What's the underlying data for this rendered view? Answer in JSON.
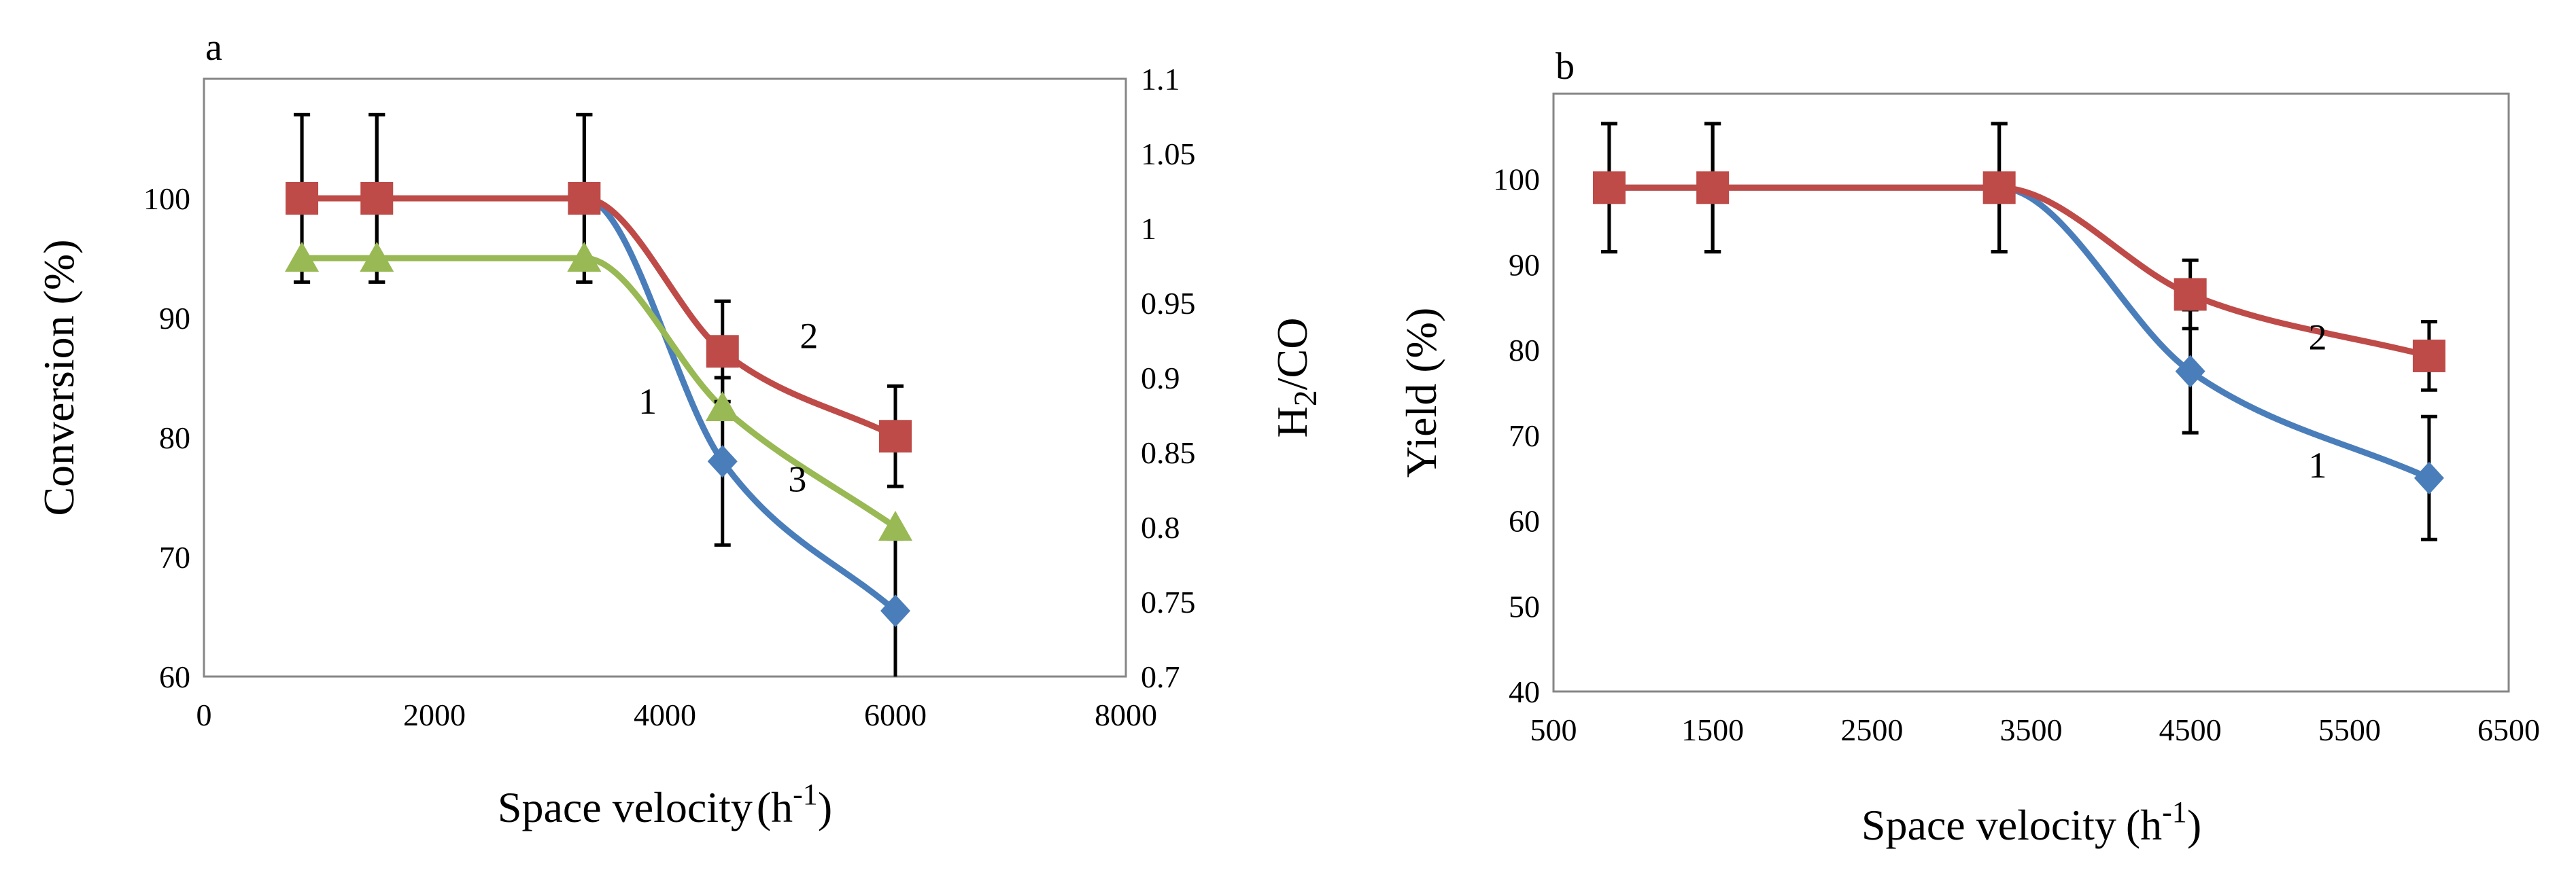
{
  "figure": {
    "colors": {
      "blue": "#4a7ebb",
      "red": "#be4b48",
      "green": "#98b954",
      "axis": "#868686",
      "errorbar": "#000000"
    }
  },
  "chart_data": [
    {
      "panel_label": "a",
      "type": "line",
      "xlabel": "Space velocity",
      "xlabel_unit_base": "(h",
      "xlabel_unit_sup": "-1",
      "xlabel_unit_end": ")",
      "ylabel": "Conversion (%)",
      "y2label_main": "H",
      "y2label_sub": "2",
      "y2label_end": "/CO",
      "xlim": [
        0,
        8000
      ],
      "ylim": [
        60,
        110
      ],
      "y2lim": [
        0.7,
        1.1
      ],
      "x_ticks": [
        "0",
        "2000",
        "4000",
        "6000",
        "8000"
      ],
      "y_ticks": [
        "60",
        "70",
        "80",
        "90",
        "100"
      ],
      "y2_ticks": [
        "0.7",
        "0.75",
        "0.8",
        "0.85",
        "0.9",
        "0.95",
        "1",
        "1.05",
        "1.1"
      ],
      "series": [
        {
          "name": "1",
          "color": "blue",
          "marker": "diamond",
          "axis": "left",
          "x": [
            850,
            1500,
            3300,
            4500,
            6000
          ],
          "values": [
            100,
            100,
            100,
            78,
            65.5
          ],
          "errors": [
            7,
            7,
            7,
            7,
            6
          ]
        },
        {
          "name": "2",
          "color": "red",
          "marker": "square",
          "axis": "left",
          "x": [
            850,
            1500,
            3300,
            4500,
            6000
          ],
          "values": [
            100,
            100,
            100,
            87.2,
            80.1
          ],
          "errors": [
            7,
            7,
            7,
            4.2,
            4.2
          ]
        },
        {
          "name": "3",
          "color": "green",
          "marker": "triangle",
          "axis": "right",
          "x": [
            850,
            1500,
            3300,
            4500,
            6000
          ],
          "values": [
            0.98,
            0.98,
            0.98,
            0.88,
            0.8
          ],
          "errors": [
            0,
            0,
            0,
            0,
            0
          ]
        }
      ],
      "annotations": [
        {
          "text": "1",
          "x": 3850,
          "y": 83
        },
        {
          "text": "2",
          "x": 5250,
          "y": 88.5
        },
        {
          "text": "3",
          "x": 5150,
          "y": 76.5
        }
      ]
    },
    {
      "panel_label": "b",
      "type": "line",
      "xlabel": "Space velocity",
      "xlabel_unit_base": "(h",
      "xlabel_unit_sup": "-1",
      "xlabel_unit_end": ")",
      "ylabel": "Yield  (%)",
      "xlim": [
        500,
        6500
      ],
      "ylim": [
        40,
        110
      ],
      "x_ticks": [
        "500",
        "1500",
        "2500",
        "3500",
        "4500",
        "5500",
        "6500"
      ],
      "y_ticks": [
        "40",
        "50",
        "60",
        "70",
        "80",
        "90",
        "100"
      ],
      "series": [
        {
          "name": "1",
          "color": "blue",
          "marker": "diamond",
          "x": [
            850,
            1500,
            3300,
            4500,
            6000
          ],
          "values": [
            99,
            99,
            99,
            77.5,
            65
          ],
          "errors": [
            7.5,
            7.5,
            7.5,
            7.2,
            7.2
          ]
        },
        {
          "name": "2",
          "color": "red",
          "marker": "square",
          "x": [
            850,
            1500,
            3300,
            4500,
            6000
          ],
          "values": [
            99,
            99,
            99,
            86.5,
            79.3
          ],
          "errors": [
            7.5,
            7.5,
            7.5,
            4,
            4
          ]
        }
      ],
      "annotations": [
        {
          "text": "1",
          "x": 5300,
          "y": 66.5
        },
        {
          "text": "2",
          "x": 5300,
          "y": 81.5
        }
      ]
    }
  ]
}
